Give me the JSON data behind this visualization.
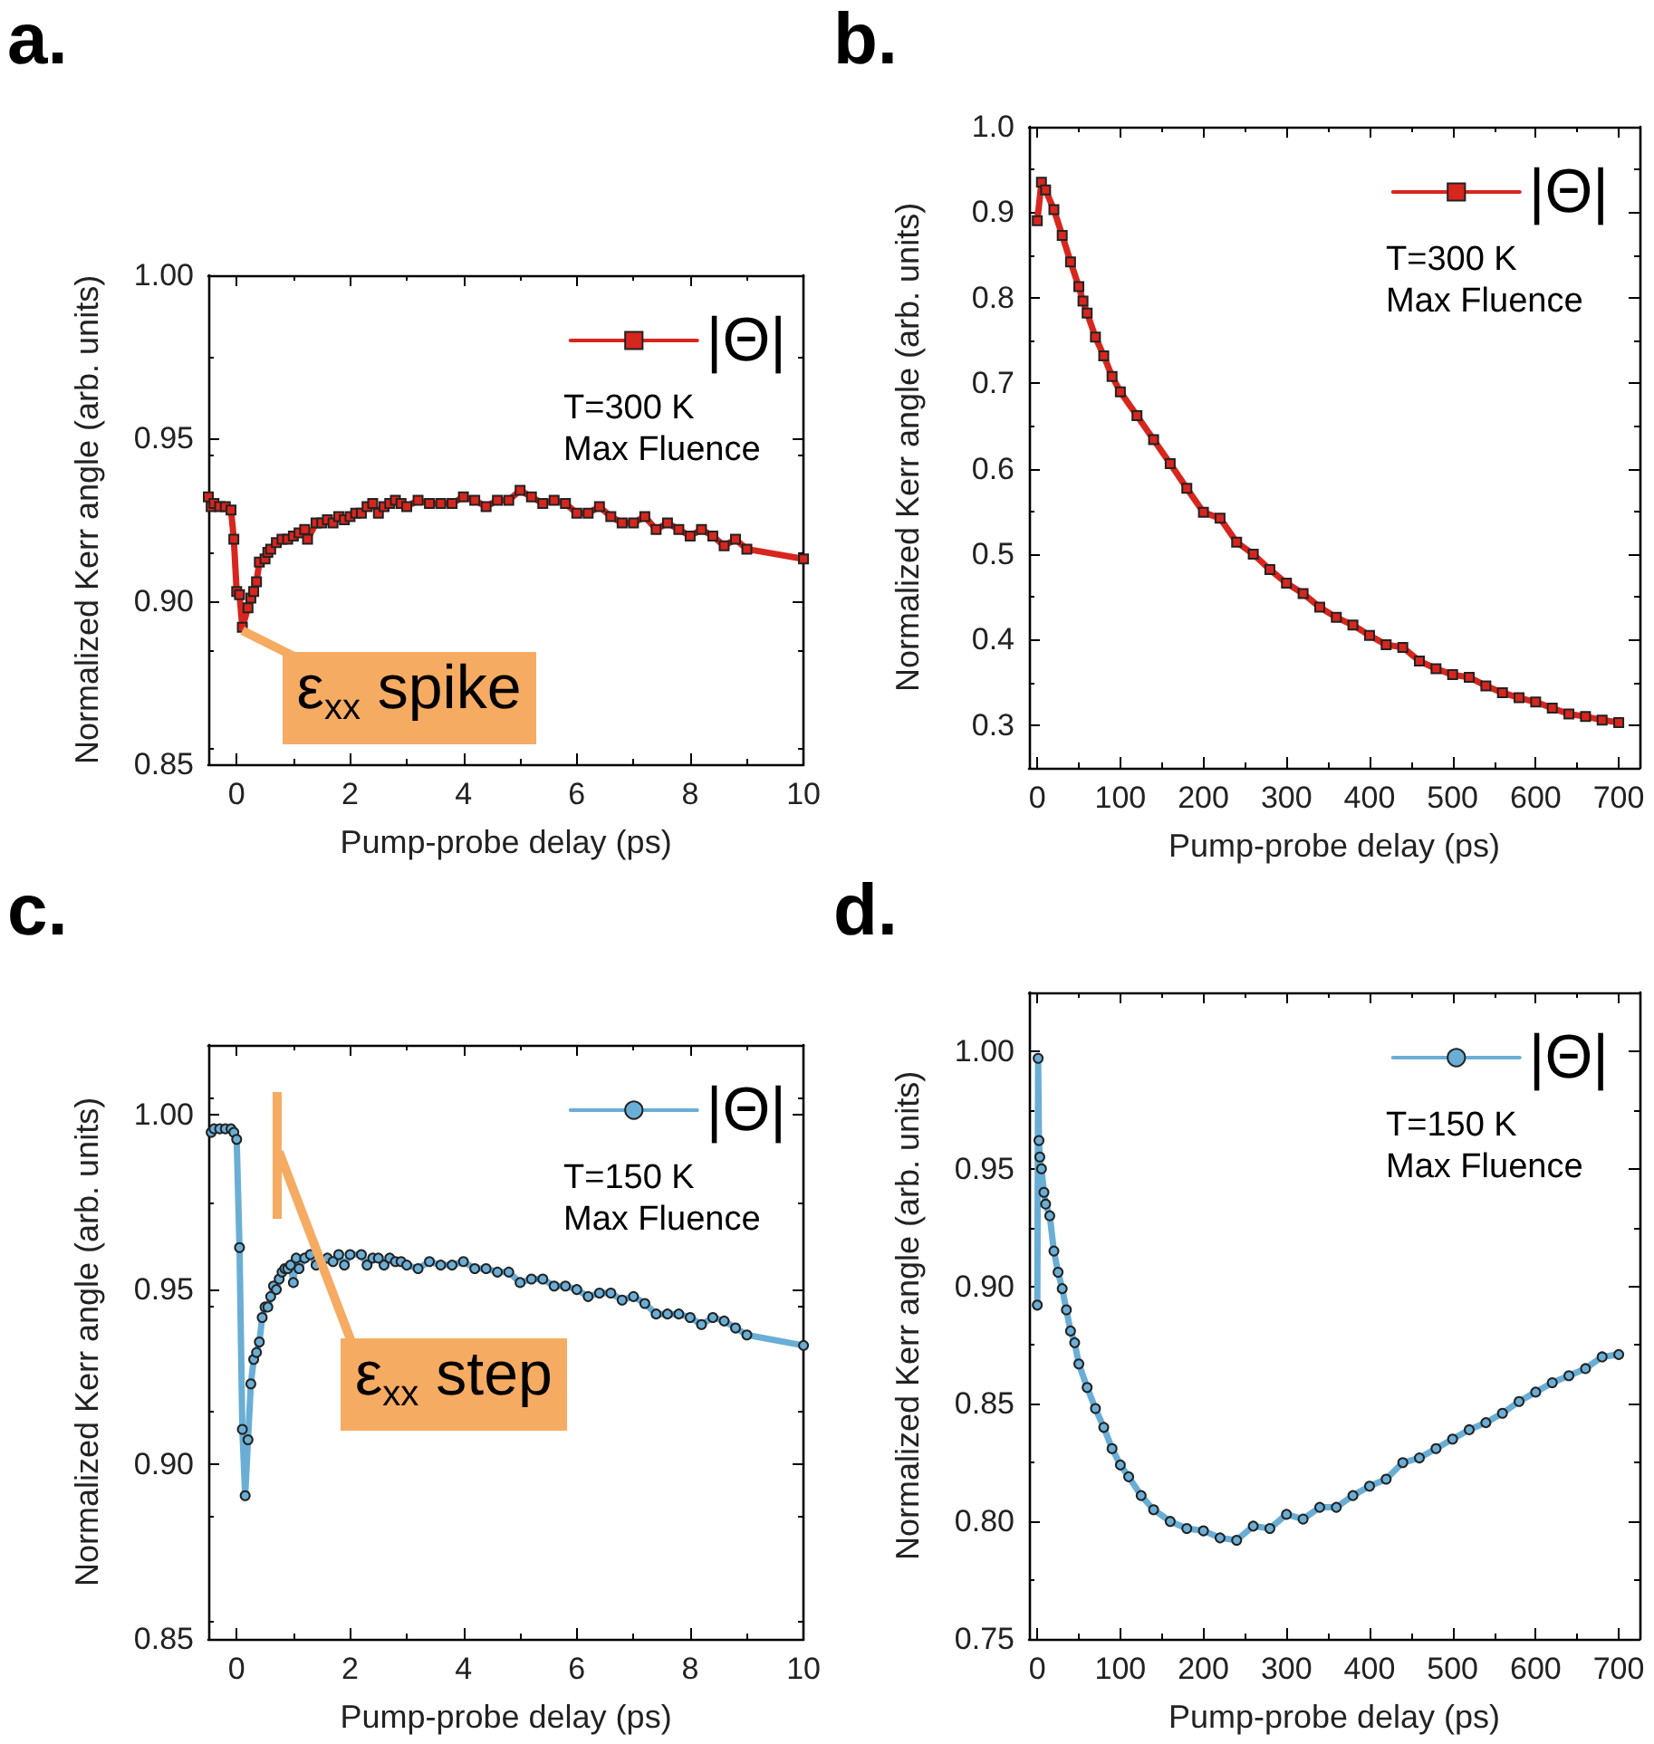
{
  "chart_data": [
    {
      "type": "line",
      "title": "a.",
      "xlabel": "Pump-probe delay (ps)",
      "ylabel": "Normalized Kerr angle (arb. units)",
      "annotations": [
        "T=300 K",
        "Max Fluence",
        {
          "text": "ε$_{xx}$ spike",
          "x": 0.1,
          "y": 0.891
        }
      ],
      "xlim": [
        -0.5,
        10
      ],
      "xticks": [
        0,
        2,
        4,
        6,
        8,
        10
      ],
      "ylim": [
        0.85,
        1.0
      ],
      "yticks": [
        0.85,
        {
          "value": 0.9,
          "label": "0.90"
        },
        0.95,
        {
          "value": 1,
          "label": "1.00"
        }
      ],
      "legend": "top right",
      "marker": "square",
      "grid": false,
      "series": [
        {
          "name": "|Θ|",
          "color": "#d7261e",
          "x": [
            -0.5,
            -0.45,
            -0.4,
            -0.3,
            -0.2,
            -0.1,
            -0.05,
            0,
            0.05,
            0.1,
            0.2,
            0.25,
            0.3,
            0.35,
            0.4,
            0.5,
            0.55,
            0.6,
            0.7,
            0.8,
            0.9,
            1,
            1.1,
            1.2,
            1.25,
            1.4,
            1.5,
            1.6,
            1.7,
            1.8,
            1.9,
            2,
            2.1,
            2.2,
            2.3,
            2.4,
            2.5,
            2.6,
            2.7,
            2.8,
            2.9,
            3,
            3.2,
            3.4,
            3.6,
            3.8,
            4,
            4.2,
            4.4,
            4.6,
            4.8,
            5,
            5.2,
            5.4,
            5.6,
            5.8,
            6,
            6.2,
            6.4,
            6.6,
            6.8,
            7,
            7.2,
            7.4,
            7.6,
            7.8,
            8,
            8.2,
            8.4,
            8.6,
            8.8,
            9,
            10
          ],
          "values": [
            0.932,
            0.929,
            0.93,
            0.929,
            0.929,
            0.928,
            0.919,
            0.903,
            0.902,
            0.892,
            0.898,
            0.901,
            0.903,
            0.906,
            0.912,
            0.913,
            0.915,
            0.916,
            0.918,
            0.919,
            0.919,
            0.92,
            0.921,
            0.922,
            0.919,
            0.924,
            0.924,
            0.925,
            0.924,
            0.926,
            0.925,
            0.926,
            0.927,
            0.927,
            0.929,
            0.93,
            0.927,
            0.929,
            0.93,
            0.931,
            0.93,
            0.929,
            0.931,
            0.93,
            0.93,
            0.93,
            0.932,
            0.931,
            0.929,
            0.931,
            0.931,
            0.934,
            0.932,
            0.93,
            0.931,
            0.93,
            0.927,
            0.927,
            0.929,
            0.926,
            0.924,
            0.924,
            0.926,
            0.922,
            0.924,
            0.922,
            0.92,
            0.922,
            0.92,
            0.917,
            0.919,
            0.916,
            0.913
          ]
        }
      ]
    },
    {
      "type": "line",
      "title": "b.",
      "xlabel": "Pump-probe delay (ps)",
      "ylabel": "Normalized Kerr angle (arb. units)",
      "annotations": [
        "T=300 K",
        "Max Fluence"
      ],
      "xlim": [
        -10,
        725
      ],
      "xticks": [
        0,
        100,
        200,
        300,
        400,
        500,
        600,
        700
      ],
      "ylim": [
        0.25,
        1.0
      ],
      "yticks": [
        0.3,
        0.4,
        0.5,
        0.6,
        0.7,
        0.8,
        0.9,
        {
          "value": 1,
          "label": "1.0"
        }
      ],
      "legend": "top right",
      "marker": "square",
      "grid": false,
      "series": [
        {
          "name": "|Θ|",
          "color": "#d7261e",
          "x": [
            0,
            5,
            10,
            20,
            30,
            40,
            50,
            55,
            60,
            70,
            80,
            90,
            100,
            120,
            140,
            160,
            180,
            200,
            220,
            240,
            260,
            280,
            300,
            320,
            340,
            360,
            380,
            400,
            420,
            440,
            460,
            480,
            500,
            520,
            540,
            560,
            580,
            600,
            620,
            640,
            660,
            680,
            700
          ],
          "values": [
            0.89,
            0.935,
            0.926,
            0.903,
            0.873,
            0.842,
            0.813,
            0.796,
            0.782,
            0.754,
            0.732,
            0.708,
            0.69,
            0.662,
            0.634,
            0.606,
            0.577,
            0.549,
            0.542,
            0.514,
            0.5,
            0.482,
            0.466,
            0.454,
            0.438,
            0.426,
            0.417,
            0.405,
            0.394,
            0.391,
            0.375,
            0.366,
            0.359,
            0.356,
            0.346,
            0.338,
            0.332,
            0.327,
            0.32,
            0.313,
            0.31,
            0.306,
            0.303
          ]
        }
      ]
    },
    {
      "type": "line",
      "title": "c.",
      "xlabel": "Pump-probe delay (ps)",
      "ylabel": "Normalized Kerr angle (arb. units)",
      "annotations": [
        "T=150 K",
        "Max Fluence",
        "ε$_{xx}$ step"
      ],
      "xlim": [
        -0.5,
        10
      ],
      "xticks": [
        0,
        2,
        4,
        6,
        8,
        10
      ],
      "ylim": [
        0.85,
        1.02
      ],
      "yticks": [
        0.85,
        {
          "value": 0.9,
          "label": "0.90"
        },
        0.95,
        {
          "value": 1,
          "label": "1.00"
        }
      ],
      "legend": "top right",
      "marker": "circle",
      "grid": false,
      "series": [
        {
          "name": "|Θ|",
          "color": "#6aaed6",
          "x": [
            -0.45,
            -0.4,
            -0.3,
            -0.2,
            -0.1,
            -0.05,
            0,
            0.05,
            0.1,
            0.15,
            0.2,
            0.25,
            0.3,
            0.35,
            0.4,
            0.45,
            0.5,
            0.55,
            0.6,
            0.65,
            0.7,
            0.75,
            0.8,
            0.85,
            0.9,
            0.95,
            1,
            1.05,
            1.1,
            1.2,
            1.3,
            1.4,
            1.5,
            1.6,
            1.7,
            1.8,
            1.9,
            2,
            2.2,
            2.3,
            2.4,
            2.5,
            2.6,
            2.7,
            2.8,
            2.9,
            3,
            3.2,
            3.4,
            3.6,
            3.8,
            4,
            4.2,
            4.4,
            4.6,
            4.8,
            5,
            5.2,
            5.4,
            5.6,
            5.8,
            6,
            6.2,
            6.4,
            6.6,
            6.8,
            7,
            7.2,
            7.4,
            7.6,
            7.8,
            8,
            8.2,
            8.4,
            8.6,
            8.8,
            9,
            10
          ],
          "values": [
            0.995,
            0.996,
            0.996,
            0.996,
            0.996,
            0.995,
            0.993,
            0.962,
            0.91,
            0.891,
            0.907,
            0.923,
            0.93,
            0.932,
            0.935,
            0.942,
            0.945,
            0.945,
            0.948,
            0.951,
            0.95,
            0.953,
            0.955,
            0.956,
            0.956,
            0.957,
            0.952,
            0.959,
            0.956,
            0.959,
            0.96,
            0.957,
            0.958,
            0.959,
            0.958,
            0.96,
            0.957,
            0.96,
            0.96,
            0.957,
            0.959,
            0.959,
            0.957,
            0.959,
            0.958,
            0.958,
            0.957,
            0.956,
            0.958,
            0.957,
            0.957,
            0.958,
            0.956,
            0.956,
            0.955,
            0.955,
            0.952,
            0.953,
            0.953,
            0.951,
            0.951,
            0.95,
            0.948,
            0.949,
            0.949,
            0.947,
            0.948,
            0.946,
            0.943,
            0.943,
            0.943,
            0.942,
            0.94,
            0.942,
            0.941,
            0.939,
            0.937,
            0.934
          ]
        }
      ]
    },
    {
      "type": "line",
      "title": "d.",
      "xlabel": "Pump-probe delay (ps)",
      "ylabel": "Normalized Kerr angle (arb. units)",
      "annotations": [
        "T=150 K",
        "Max Fluence"
      ],
      "xlim": [
        -10,
        725
      ],
      "xticks": [
        0,
        100,
        200,
        300,
        400,
        500,
        600,
        700
      ],
      "ylim": [
        0.75,
        1.025
      ],
      "yticks": [
        0.75,
        {
          "value": 0.8,
          "label": "0.80"
        },
        0.85,
        {
          "value": 0.9,
          "label": "0.90"
        },
        0.95,
        {
          "value": 1,
          "label": "1.00"
        }
      ],
      "legend": "top right",
      "marker": "circle",
      "grid": false,
      "series": [
        {
          "name": "|Θ|",
          "color": "#6aaed6",
          "x": [
            0,
            1,
            2,
            3,
            5,
            8,
            10,
            15,
            20,
            25,
            30,
            35,
            40,
            45,
            50,
            60,
            70,
            80,
            90,
            100,
            110,
            125,
            140,
            160,
            180,
            200,
            220,
            240,
            260,
            280,
            300,
            320,
            340,
            360,
            380,
            400,
            420,
            440,
            460,
            480,
            500,
            520,
            540,
            560,
            580,
            600,
            620,
            640,
            660,
            680,
            700
          ],
          "values": [
            0.892,
            0.997,
            0.962,
            0.955,
            0.95,
            0.94,
            0.935,
            0.93,
            0.915,
            0.906,
            0.899,
            0.89,
            0.881,
            0.876,
            0.867,
            0.857,
            0.848,
            0.84,
            0.831,
            0.824,
            0.819,
            0.811,
            0.805,
            0.8,
            0.797,
            0.796,
            0.793,
            0.792,
            0.798,
            0.797,
            0.803,
            0.801,
            0.806,
            0.806,
            0.811,
            0.815,
            0.818,
            0.825,
            0.827,
            0.831,
            0.835,
            0.839,
            0.842,
            0.846,
            0.851,
            0.855,
            0.859,
            0.862,
            0.865,
            0.87,
            0.871
          ]
        }
      ]
    }
  ]
}
